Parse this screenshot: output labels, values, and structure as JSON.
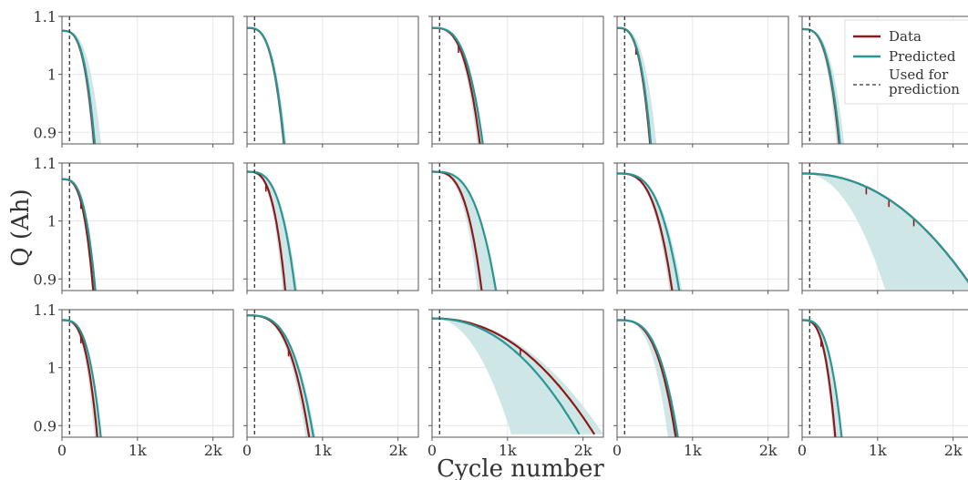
{
  "chart_data": {
    "type": "line",
    "grid": true,
    "layout": "3x5 small multiples, shared axes",
    "xlabel": "Cycle number",
    "ylabel": "Q (Ah)",
    "x_ticks": [
      {
        "value": 0,
        "label": "0"
      },
      {
        "value": 1000,
        "label": "1k"
      },
      {
        "value": 2000,
        "label": "2k"
      }
    ],
    "y_ticks": [
      {
        "value": 1.1,
        "label": "1.1"
      },
      {
        "value": 1.0,
        "label": "1"
      },
      {
        "value": 0.9,
        "label": "0.9"
      }
    ],
    "xlim": [
      0,
      2270
    ],
    "ylim": [
      0.88,
      1.1
    ],
    "prediction_cycle": 100,
    "legend": {
      "placement": "top-right",
      "entries": [
        {
          "label": "Data",
          "style": "solid",
          "color": "#8b1a1a"
        },
        {
          "label": "Predicted",
          "style": "solid",
          "color": "#2a9593"
        },
        {
          "label": "Used for prediction",
          "style": "dashed",
          "color": "#333333"
        }
      ]
    },
    "colors": {
      "data": "#8b1a1a",
      "predicted": "#2a9593",
      "band": "#cfe6e6"
    },
    "series": [
      "Data",
      "Predicted",
      "Used for prediction"
    ],
    "panels": [
      {
        "q0": 1.075,
        "data_end": 460,
        "pred_end": 470,
        "band_low": 430,
        "band_high": 560
      },
      {
        "q0": 1.08,
        "data_end": 525,
        "pred_end": 530,
        "band_low": 500,
        "band_high": 560
      },
      {
        "q0": 1.08,
        "data_end": 680,
        "pred_end": 720,
        "band_low": 640,
        "band_high": 740,
        "dips": [
          350
        ]
      },
      {
        "q0": 1.08,
        "data_end": 470,
        "pred_end": 480,
        "band_low": 450,
        "band_high": 560,
        "dips": [
          250
        ]
      },
      {
        "q0": 1.078,
        "data_end": 530,
        "pred_end": 540,
        "band_low": 490,
        "band_high": 600
      },
      {
        "q0": 1.072,
        "data_end": 450,
        "pred_end": 480,
        "band_low": 430,
        "band_high": 500,
        "dips": [
          250
        ]
      },
      {
        "q0": 1.085,
        "data_end": 540,
        "pred_end": 680,
        "band_low": 500,
        "band_high": 710,
        "dips": [
          250
        ]
      },
      {
        "q0": 1.085,
        "data_end": 700,
        "pred_end": 900,
        "band_low": 640,
        "band_high": 920
      },
      {
        "q0": 1.082,
        "data_end": 780,
        "pred_end": 880,
        "band_low": 740,
        "band_high": 920
      },
      {
        "q0": 1.082,
        "data_end": 2270,
        "pred_end": 2270,
        "band_low": 1100,
        "band_high": 2270,
        "slow": true,
        "dips": [
          850,
          1150,
          1480
        ]
      },
      {
        "q0": 1.082,
        "data_end": 500,
        "pred_end": 550,
        "band_low": 460,
        "band_high": 560,
        "dips": [
          250
        ]
      },
      {
        "q0": 1.09,
        "data_end": 870,
        "pred_end": 930,
        "band_low": 820,
        "band_high": 960,
        "dips": [
          550
        ]
      },
      {
        "q0": 1.085,
        "data_end": 2150,
        "pred_end": 1950,
        "band_low": 1050,
        "band_high": 2270,
        "slow": true,
        "dips": [
          1170
        ]
      },
      {
        "q0": 1.082,
        "data_end": 830,
        "pred_end": 860,
        "band_low": 720,
        "band_high": 880
      },
      {
        "q0": 1.082,
        "data_end": 470,
        "pred_end": 560,
        "band_low": 440,
        "band_high": 560,
        "dips": [
          250
        ]
      }
    ]
  }
}
